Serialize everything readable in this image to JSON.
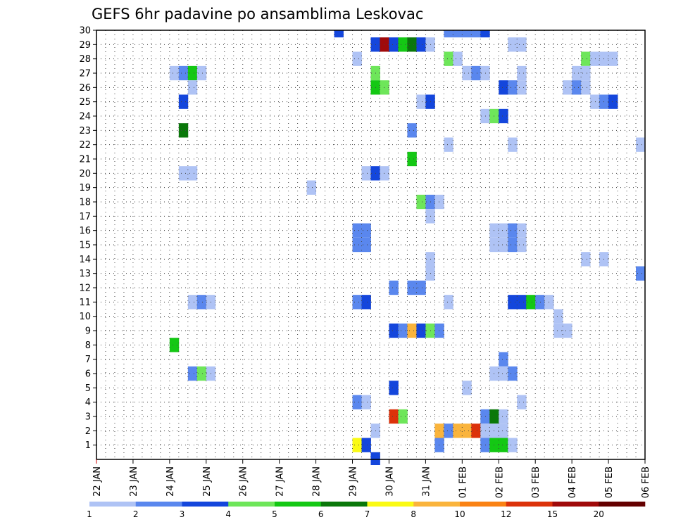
{
  "chart_data": {
    "type": "heatmap",
    "title": "GEFS 6hr padavine po ansamblima Leskovac",
    "x_tick_labels": [
      "22 JAN",
      "23 JAN",
      "24 JAN",
      "25 JAN",
      "26 JAN",
      "27 JAN",
      "28 JAN",
      "29 JAN",
      "30 JAN",
      "31 JAN",
      "01 FEB",
      "02 FEB",
      "03 FEB",
      "04 FEB",
      "05 FEB",
      "06 FEB"
    ],
    "y_tick_labels": [
      "1",
      "2",
      "3",
      "4",
      "5",
      "6",
      "7",
      "8",
      "9",
      "10",
      "11",
      "12",
      "13",
      "14",
      "15",
      "16",
      "17",
      "18",
      "19",
      "20",
      "21",
      "22",
      "23",
      "24",
      "25",
      "26",
      "27",
      "28",
      "29",
      "30"
    ],
    "x_unit": "6-hour steps from 22 JAN 00Z",
    "xlim": [
      0,
      60
    ],
    "ylim": [
      0,
      30
    ],
    "grid": true,
    "colorbar": {
      "labels": [
        "1",
        "2",
        "3",
        "4",
        "5",
        "6",
        "7",
        "8",
        "10",
        "12",
        "15",
        "20"
      ],
      "colors": [
        "#afc3f5",
        "#5a87ee",
        "#1446dc",
        "#6ee65a",
        "#14c814",
        "#0a780a",
        "#fafa14",
        "#fab43c",
        "#fa8214",
        "#dc320a",
        "#a00a0a",
        "#640000"
      ]
    },
    "cells": [
      {
        "m": 30,
        "t": 26.5,
        "c": 2
      },
      {
        "m": 30,
        "t": 38.5,
        "c": 1
      },
      {
        "m": 30,
        "t": 39.5,
        "c": 1
      },
      {
        "m": 30,
        "t": 40.5,
        "c": 1
      },
      {
        "m": 30,
        "t": 41.5,
        "c": 1
      },
      {
        "m": 30,
        "t": 42.5,
        "c": 2
      },
      {
        "m": 29,
        "t": 30.5,
        "c": 2
      },
      {
        "m": 29,
        "t": 31.5,
        "c": 10
      },
      {
        "m": 29,
        "t": 32.5,
        "c": 2
      },
      {
        "m": 29,
        "t": 33.5,
        "c": 4
      },
      {
        "m": 29,
        "t": 34.5,
        "c": 5
      },
      {
        "m": 29,
        "t": 35.5,
        "c": 2
      },
      {
        "m": 29,
        "t": 36.5,
        "c": 0
      },
      {
        "m": 29,
        "t": 45.5,
        "c": 0
      },
      {
        "m": 29,
        "t": 46.5,
        "c": 0
      },
      {
        "m": 28,
        "t": 28.5,
        "c": 0
      },
      {
        "m": 28,
        "t": 38.5,
        "c": 3
      },
      {
        "m": 28,
        "t": 39.5,
        "c": 0
      },
      {
        "m": 28,
        "t": 53.5,
        "c": 3
      },
      {
        "m": 28,
        "t": 54.5,
        "c": 0
      },
      {
        "m": 28,
        "t": 55.5,
        "c": 0
      },
      {
        "m": 28,
        "t": 56.5,
        "c": 0
      },
      {
        "m": 27,
        "t": 8.5,
        "c": 0
      },
      {
        "m": 27,
        "t": 9.5,
        "c": 1
      },
      {
        "m": 27,
        "t": 10.5,
        "c": 4
      },
      {
        "m": 27,
        "t": 11.5,
        "c": 0
      },
      {
        "m": 27,
        "t": 30.5,
        "c": 3
      },
      {
        "m": 27,
        "t": 40.5,
        "c": 0
      },
      {
        "m": 27,
        "t": 41.5,
        "c": 1
      },
      {
        "m": 27,
        "t": 42.5,
        "c": 0
      },
      {
        "m": 27,
        "t": 46.5,
        "c": 0
      },
      {
        "m": 27,
        "t": 52.5,
        "c": 0
      },
      {
        "m": 27,
        "t": 53.5,
        "c": 0
      },
      {
        "m": 26,
        "t": 10.5,
        "c": 0
      },
      {
        "m": 26,
        "t": 30.5,
        "c": 4
      },
      {
        "m": 26,
        "t": 31.5,
        "c": 3
      },
      {
        "m": 26,
        "t": 44.5,
        "c": 2
      },
      {
        "m": 26,
        "t": 45.5,
        "c": 1
      },
      {
        "m": 26,
        "t": 46.5,
        "c": 0
      },
      {
        "m": 26,
        "t": 51.5,
        "c": 0
      },
      {
        "m": 26,
        "t": 52.5,
        "c": 1
      },
      {
        "m": 26,
        "t": 53.5,
        "c": 0
      },
      {
        "m": 25,
        "t": 9.5,
        "c": 2
      },
      {
        "m": 25,
        "t": 35.5,
        "c": 0
      },
      {
        "m": 25,
        "t": 36.5,
        "c": 2
      },
      {
        "m": 25,
        "t": 54.5,
        "c": 0
      },
      {
        "m": 25,
        "t": 55.5,
        "c": 1
      },
      {
        "m": 25,
        "t": 56.5,
        "c": 2
      },
      {
        "m": 24,
        "t": 42.5,
        "c": 0
      },
      {
        "m": 24,
        "t": 43.5,
        "c": 3
      },
      {
        "m": 24,
        "t": 44.5,
        "c": 2
      },
      {
        "m": 23,
        "t": 9.5,
        "c": 5
      },
      {
        "m": 23,
        "t": 34.5,
        "c": 1
      },
      {
        "m": 22,
        "t": 38.5,
        "c": 0
      },
      {
        "m": 22,
        "t": 45.5,
        "c": 0
      },
      {
        "m": 22,
        "t": 59.5,
        "c": 0
      },
      {
        "m": 21,
        "t": 34.5,
        "c": 4
      },
      {
        "m": 20,
        "t": 9.5,
        "c": 0
      },
      {
        "m": 20,
        "t": 10.5,
        "c": 0
      },
      {
        "m": 20,
        "t": 29.5,
        "c": 0
      },
      {
        "m": 20,
        "t": 30.5,
        "c": 2
      },
      {
        "m": 20,
        "t": 31.5,
        "c": 0
      },
      {
        "m": 19,
        "t": 23.5,
        "c": 0
      },
      {
        "m": 18,
        "t": 35.5,
        "c": 3
      },
      {
        "m": 18,
        "t": 36.5,
        "c": 1
      },
      {
        "m": 18,
        "t": 37.5,
        "c": 0
      },
      {
        "m": 17,
        "t": 36.5,
        "c": 0
      },
      {
        "m": 16,
        "t": 28.5,
        "c": 1
      },
      {
        "m": 16,
        "t": 29.5,
        "c": 1
      },
      {
        "m": 16,
        "t": 43.5,
        "c": 0
      },
      {
        "m": 16,
        "t": 44.5,
        "c": 0
      },
      {
        "m": 16,
        "t": 45.5,
        "c": 1
      },
      {
        "m": 16,
        "t": 46.5,
        "c": 0
      },
      {
        "m": 15,
        "t": 28.5,
        "c": 1
      },
      {
        "m": 15,
        "t": 29.5,
        "c": 1
      },
      {
        "m": 15,
        "t": 43.5,
        "c": 0
      },
      {
        "m": 15,
        "t": 44.5,
        "c": 0
      },
      {
        "m": 15,
        "t": 45.5,
        "c": 1
      },
      {
        "m": 15,
        "t": 46.5,
        "c": 0
      },
      {
        "m": 14,
        "t": 36.5,
        "c": 0
      },
      {
        "m": 14,
        "t": 53.5,
        "c": 0
      },
      {
        "m": 14,
        "t": 55.5,
        "c": 0
      },
      {
        "m": 13,
        "t": 36.5,
        "c": 0
      },
      {
        "m": 13,
        "t": 59.5,
        "c": 1
      },
      {
        "m": 12,
        "t": 32.5,
        "c": 1
      },
      {
        "m": 12,
        "t": 34.5,
        "c": 1
      },
      {
        "m": 12,
        "t": 35.5,
        "c": 1
      },
      {
        "m": 11,
        "t": 10.5,
        "c": 0
      },
      {
        "m": 11,
        "t": 11.5,
        "c": 1
      },
      {
        "m": 11,
        "t": 12.5,
        "c": 0
      },
      {
        "m": 11,
        "t": 28.5,
        "c": 1
      },
      {
        "m": 11,
        "t": 29.5,
        "c": 2
      },
      {
        "m": 11,
        "t": 38.5,
        "c": 0
      },
      {
        "m": 11,
        "t": 45.5,
        "c": 2
      },
      {
        "m": 11,
        "t": 46.5,
        "c": 2
      },
      {
        "m": 11,
        "t": 47.5,
        "c": 4
      },
      {
        "m": 11,
        "t": 48.5,
        "c": 1
      },
      {
        "m": 11,
        "t": 49.5,
        "c": 0
      },
      {
        "m": 10,
        "t": 50.5,
        "c": 0
      },
      {
        "m": 9,
        "t": 32.5,
        "c": 2
      },
      {
        "m": 9,
        "t": 33.5,
        "c": 1
      },
      {
        "m": 9,
        "t": 34.5,
        "c": 7
      },
      {
        "m": 9,
        "t": 35.5,
        "c": 2
      },
      {
        "m": 9,
        "t": 36.5,
        "c": 3
      },
      {
        "m": 9,
        "t": 37.5,
        "c": 1
      },
      {
        "m": 9,
        "t": 50.5,
        "c": 0
      },
      {
        "m": 9,
        "t": 51.5,
        "c": 0
      },
      {
        "m": 8,
        "t": 8.5,
        "c": 4
      },
      {
        "m": 7,
        "t": 44.5,
        "c": 1
      },
      {
        "m": 6,
        "t": 10.5,
        "c": 1
      },
      {
        "m": 6,
        "t": 11.5,
        "c": 3
      },
      {
        "m": 6,
        "t": 12.5,
        "c": 0
      },
      {
        "m": 6,
        "t": 43.5,
        "c": 0
      },
      {
        "m": 6,
        "t": 44.5,
        "c": 0
      },
      {
        "m": 6,
        "t": 45.5,
        "c": 1
      },
      {
        "m": 5,
        "t": 32.5,
        "c": 2
      },
      {
        "m": 5,
        "t": 40.5,
        "c": 0
      },
      {
        "m": 4,
        "t": 28.5,
        "c": 1
      },
      {
        "m": 4,
        "t": 29.5,
        "c": 0
      },
      {
        "m": 4,
        "t": 46.5,
        "c": 0
      },
      {
        "m": 3,
        "t": 32.5,
        "c": 9
      },
      {
        "m": 3,
        "t": 33.5,
        "c": 3
      },
      {
        "m": 3,
        "t": 42.5,
        "c": 1
      },
      {
        "m": 3,
        "t": 43.5,
        "c": 5
      },
      {
        "m": 3,
        "t": 44.5,
        "c": 0
      },
      {
        "m": 2,
        "t": 30.5,
        "c": 0
      },
      {
        "m": 2,
        "t": 37.5,
        "c": 7
      },
      {
        "m": 2,
        "t": 38.5,
        "c": 1
      },
      {
        "m": 2,
        "t": 39.5,
        "c": 7
      },
      {
        "m": 2,
        "t": 40.5,
        "c": 7
      },
      {
        "m": 2,
        "t": 41.5,
        "c": 9
      },
      {
        "m": 2,
        "t": 42.5,
        "c": 0
      },
      {
        "m": 2,
        "t": 43.5,
        "c": 0
      },
      {
        "m": 2,
        "t": 44.5,
        "c": 0
      },
      {
        "m": 1,
        "t": 28.5,
        "c": 6
      },
      {
        "m": 1,
        "t": 29.5,
        "c": 2
      },
      {
        "m": 1,
        "t": 37.5,
        "c": 1
      },
      {
        "m": 1,
        "t": 42.5,
        "c": 1
      },
      {
        "m": 1,
        "t": 43.5,
        "c": 4
      },
      {
        "m": 1,
        "t": 44.5,
        "c": 4
      },
      {
        "m": 1,
        "t": 45.5,
        "c": 0
      },
      {
        "m": 0,
        "t": 30.5,
        "c": 2
      }
    ]
  }
}
